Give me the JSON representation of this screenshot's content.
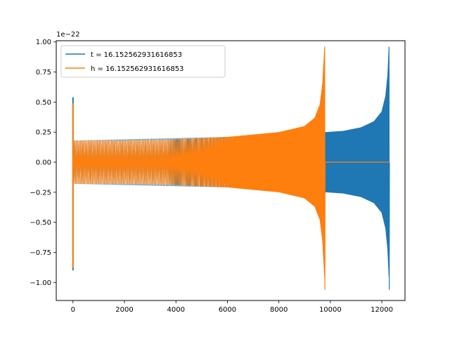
{
  "chart_data": {
    "type": "line",
    "title": "",
    "xlabel": "",
    "ylabel": "",
    "y_offset_label": "1e−22",
    "xlim": [
      -650,
      12900
    ],
    "ylim": [
      -1.15,
      1.01
    ],
    "xticks": [
      0,
      2000,
      4000,
      6000,
      8000,
      10000,
      12000
    ],
    "xtick_labels": [
      "0",
      "2000",
      "4000",
      "6000",
      "8000",
      "10000",
      "12000"
    ],
    "yticks": [
      -1.0,
      -0.75,
      -0.5,
      -0.25,
      0.0,
      0.25,
      0.5,
      0.75,
      1.0
    ],
    "ytick_labels": [
      "−1.00",
      "−0.75",
      "−0.50",
      "−0.25",
      "0.00",
      "0.25",
      "0.50",
      "0.75",
      "1.00"
    ],
    "grid": false,
    "legend_position": "top-left",
    "series": [
      {
        "name": "t = 16.152562931616853",
        "color": "#1f77b4",
        "initial_spike": {
          "x": 0,
          "ymax": 0.54,
          "ymin": -0.9
        },
        "start_x": 0,
        "merger_x": 12280,
        "end_x": 12300,
        "envelope": [
          [
            0,
            0.18
          ],
          [
            2000,
            0.19
          ],
          [
            4000,
            0.2
          ],
          [
            6000,
            0.21
          ],
          [
            8000,
            0.23
          ],
          [
            9800,
            0.25
          ],
          [
            10500,
            0.26
          ],
          [
            11200,
            0.29
          ],
          [
            11700,
            0.34
          ],
          [
            12000,
            0.42
          ],
          [
            12150,
            0.55
          ],
          [
            12230,
            0.72
          ],
          [
            12270,
            0.9
          ],
          [
            12280,
            0.96
          ]
        ],
        "min_at_merger": -1.06
      },
      {
        "name": "h = 16.152562931616853",
        "color": "#ff7f0e",
        "initial_spike": {
          "x": 0,
          "ymax": 0.49,
          "ymin": -0.88
        },
        "start_x": 0,
        "merger_x": 9780,
        "end_x": 12300,
        "envelope": [
          [
            0,
            0.18
          ],
          [
            2000,
            0.18
          ],
          [
            4000,
            0.19
          ],
          [
            6000,
            0.21
          ],
          [
            8000,
            0.25
          ],
          [
            9000,
            0.3
          ],
          [
            9400,
            0.37
          ],
          [
            9600,
            0.48
          ],
          [
            9700,
            0.65
          ],
          [
            9760,
            0.88
          ],
          [
            9780,
            0.96
          ]
        ],
        "min_at_merger": -1.06
      }
    ]
  }
}
